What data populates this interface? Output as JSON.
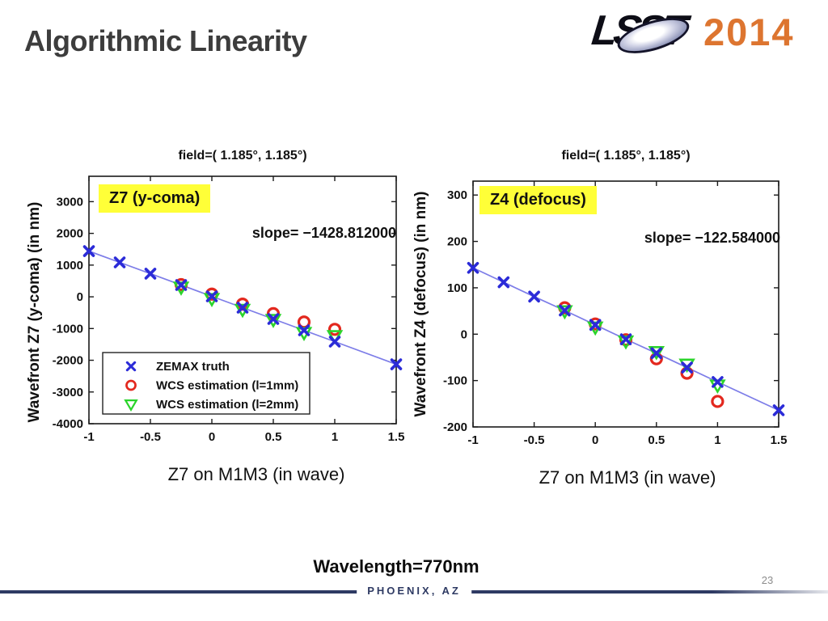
{
  "slide": {
    "title": "Algorithmic Linearity",
    "wavelength_note": "Wavelength=770nm",
    "footer_location": "PHOENIX, AZ",
    "page_number": "23",
    "footer_color": "#2e3a63",
    "logo": {
      "lsst": "LSST",
      "year": "2014",
      "year_color": "#dd7530"
    }
  },
  "chart_data": [
    {
      "type": "scatter",
      "title": "field=( 1.185°, 1.185°)",
      "badge": "Z7 (y-coma)",
      "badge_bg": "#ffff38",
      "slope_label": "slope= −1428.812000",
      "slope_value": -1428.812,
      "ylabel": "Wavefront Z7 (y-coma) (in nm)",
      "caption": "Z7 on M1M3 (in wave)",
      "xlim": [
        -1,
        1.5
      ],
      "ylim": [
        -4000,
        3800
      ],
      "xticks": [
        -1,
        -0.5,
        0,
        0.5,
        1,
        1.5
      ],
      "yticks": [
        3000,
        2000,
        1000,
        0,
        -1000,
        -2000,
        -3000,
        -4000
      ],
      "legend": true,
      "grid": false,
      "series": [
        {
          "name": "ZEMAX truth",
          "marker": "x",
          "color": "#2b2bd8",
          "line_color": "#7d7de8",
          "x": [
            -1,
            -0.75,
            -0.5,
            -0.25,
            0,
            0.25,
            0.5,
            0.75,
            1,
            1.5
          ],
          "y": [
            1440,
            1085,
            730,
            372,
            15,
            -342,
            -699,
            -1056,
            -1413,
            -2128
          ]
        },
        {
          "name": "WCS estimation (l=1mm)",
          "marker": "circle",
          "color": "#e3281e",
          "x": [
            -0.25,
            0,
            0.25,
            0.5,
            0.75,
            1
          ],
          "y": [
            385,
            85,
            -230,
            -530,
            -795,
            -1025
          ]
        },
        {
          "name": "WCS estimation (l=2mm)",
          "marker": "triangle-down",
          "color": "#2bd42b",
          "x": [
            -0.25,
            0,
            0.25,
            0.5,
            0.75,
            1
          ],
          "y": [
            300,
            -60,
            -400,
            -720,
            -1130,
            -1230
          ]
        }
      ]
    },
    {
      "type": "scatter",
      "title": "field=( 1.185°, 1.185°)",
      "badge": "Z4 (defocus)",
      "badge_bg": "#ffff38",
      "slope_label": "slope= −122.584000",
      "slope_value": -122.584,
      "ylabel": "Wavefront Z4 (defocus) (in nm)",
      "caption": "Z7 on M1M3 (in wave)",
      "xlim": [
        -1,
        1.5
      ],
      "ylim": [
        -200,
        330
      ],
      "xticks": [
        -1,
        -0.5,
        0,
        0.5,
        1,
        1.5
      ],
      "yticks": [
        300,
        200,
        100,
        0,
        -100,
        -200
      ],
      "legend": false,
      "grid": false,
      "series": [
        {
          "name": "ZEMAX truth",
          "marker": "x",
          "color": "#2b2bd8",
          "line_color": "#7d7de8",
          "x": [
            -1,
            -0.75,
            -0.5,
            -0.25,
            0,
            0.25,
            0.5,
            0.75,
            1,
            1.5
          ],
          "y": [
            143,
            112,
            81,
            51,
            20,
            -11,
            -41,
            -72,
            -103,
            -164
          ]
        },
        {
          "name": "WCS estimation (l=1mm)",
          "marker": "circle",
          "color": "#e3281e",
          "x": [
            -0.25,
            0,
            0.25,
            0.5,
            0.75,
            1
          ],
          "y": [
            57,
            22,
            -12,
            -53,
            -84,
            -145
          ]
        },
        {
          "name": "WCS estimation (l=2mm)",
          "marker": "triangle-down",
          "color": "#2bd42b",
          "x": [
            -0.25,
            0,
            0.25,
            0.5,
            0.75,
            1
          ],
          "y": [
            50,
            15,
            -15,
            -38,
            -65,
            -110
          ]
        }
      ]
    }
  ]
}
